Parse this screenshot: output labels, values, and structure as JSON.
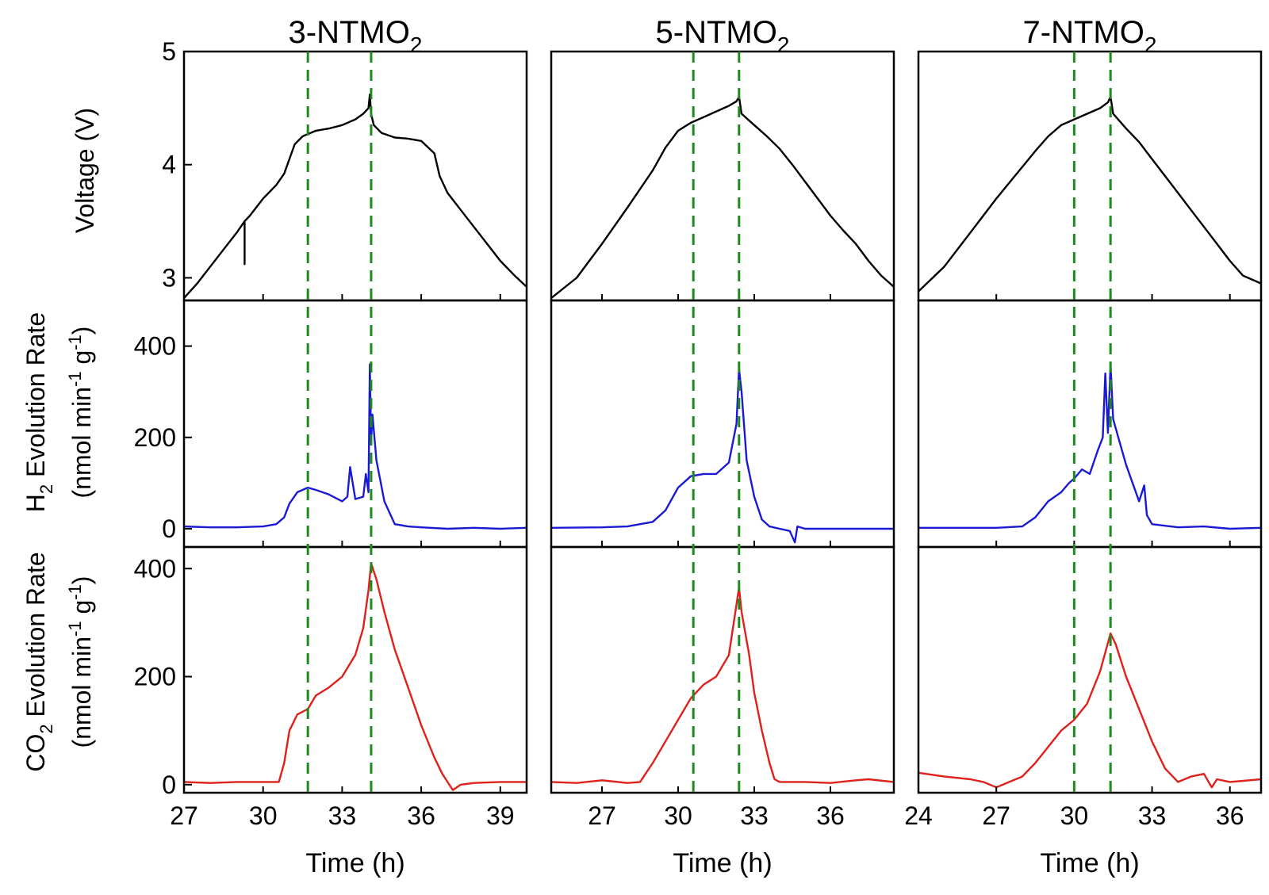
{
  "figure": {
    "x_axis_label": "Time (h)",
    "colors": {
      "voltage": "#000000",
      "h2": "#1a1ad4",
      "co2": "#e0201b",
      "markers": "#1f8a1f"
    }
  },
  "y_labels": {
    "voltage": "Voltage (V)",
    "h2": {
      "main": "H",
      "sub": "2",
      "rest": " Evolution Rate"
    },
    "co2": {
      "main": "CO",
      "sub": "2",
      "rest": " Evolution Rate"
    },
    "units": {
      "base": "(nmol min",
      "sup1": "-1",
      "mid": " g",
      "sup2": "-1",
      "end": ")"
    }
  },
  "chart_data": [
    {
      "type": "line",
      "title": {
        "main": "3-NTMO",
        "sub": "2"
      },
      "xlim": [
        27,
        40
      ],
      "x_ticks": [
        "27",
        "30",
        "33",
        "36",
        "39"
      ],
      "markers_x": [
        31.7,
        34.1
      ],
      "panels": {
        "voltage": {
          "ylim": [
            2.8,
            5.0
          ],
          "y_ticks": [
            "3",
            "4",
            "5"
          ],
          "x": [
            27,
            27.5,
            28,
            28.5,
            29,
            29.3,
            29.3,
            29.3,
            29.5,
            30,
            30.5,
            30.8,
            31,
            31.2,
            31.5,
            32,
            32.5,
            33,
            33.5,
            33.8,
            34,
            34.05,
            34.1,
            34.2,
            34.5,
            35,
            35.5,
            36,
            36.5,
            36.7,
            37,
            37.5,
            38,
            38.5,
            39,
            39.5,
            40
          ],
          "y": [
            2.82,
            2.95,
            3.1,
            3.25,
            3.4,
            3.5,
            3.12,
            3.5,
            3.55,
            3.7,
            3.82,
            3.92,
            4.05,
            4.18,
            4.25,
            4.3,
            4.32,
            4.35,
            4.4,
            4.45,
            4.5,
            4.62,
            4.45,
            4.35,
            4.28,
            4.24,
            4.23,
            4.21,
            4.1,
            3.9,
            3.75,
            3.6,
            3.45,
            3.3,
            3.15,
            3.03,
            2.92
          ]
        },
        "h2": {
          "ylim": [
            -40,
            500
          ],
          "y_ticks": [
            "0",
            "200",
            "400"
          ],
          "x": [
            27,
            28,
            29,
            30,
            30.5,
            30.8,
            31,
            31.3,
            31.7,
            32,
            32.5,
            33,
            33.2,
            33.3,
            33.5,
            33.8,
            33.9,
            34.0,
            34.05,
            34.1,
            34.15,
            34.3,
            34.6,
            35,
            35.5,
            36,
            37,
            38,
            39,
            40
          ],
          "y": [
            5,
            3,
            3,
            5,
            10,
            25,
            55,
            80,
            90,
            85,
            75,
            60,
            70,
            135,
            65,
            70,
            120,
            80,
            360,
            190,
            250,
            150,
            60,
            10,
            5,
            3,
            0,
            2,
            0,
            2
          ]
        },
        "co2": {
          "ylim": [
            -15,
            440
          ],
          "y_ticks": [
            "0",
            "200",
            "400"
          ],
          "x": [
            27,
            28,
            29,
            30,
            30.6,
            30.8,
            31,
            31.3,
            31.7,
            32,
            32.5,
            33,
            33.5,
            33.8,
            34,
            34.1,
            34.3,
            34.6,
            35,
            35.5,
            36,
            36.5,
            36.8,
            37,
            37.2,
            37.5,
            38,
            39,
            40
          ],
          "y": [
            5,
            3,
            5,
            5,
            5,
            40,
            100,
            130,
            140,
            165,
            180,
            200,
            240,
            290,
            360,
            410,
            380,
            320,
            250,
            180,
            110,
            50,
            20,
            5,
            -10,
            0,
            3,
            5,
            5
          ]
        }
      }
    },
    {
      "type": "line",
      "title": {
        "main": "5-NTMO",
        "sub": "2"
      },
      "xlim": [
        25,
        38.5
      ],
      "x_ticks": [
        "27",
        "30",
        "33",
        "36"
      ],
      "markers_x": [
        30.6,
        32.4
      ],
      "panels": {
        "voltage": {
          "ylim": [
            2.8,
            5.0
          ],
          "y_ticks": [],
          "x": [
            25,
            26,
            27,
            28,
            29,
            29.5,
            30,
            30.5,
            31,
            31.5,
            32,
            32.3,
            32.4,
            32.5,
            33,
            33.5,
            34,
            34.5,
            35,
            35.5,
            36,
            36.5,
            37,
            37.5,
            38,
            38.5
          ],
          "y": [
            2.82,
            3.0,
            3.3,
            3.62,
            3.95,
            4.15,
            4.3,
            4.37,
            4.42,
            4.47,
            4.52,
            4.56,
            4.6,
            4.45,
            4.35,
            4.25,
            4.14,
            4.0,
            3.85,
            3.7,
            3.55,
            3.42,
            3.3,
            3.15,
            3.02,
            2.92
          ]
        },
        "h2": {
          "ylim": [
            -40,
            500
          ],
          "y_ticks": [],
          "x": [
            25,
            27,
            28,
            29,
            29.5,
            30,
            30.5,
            31,
            31.5,
            32,
            32.3,
            32.4,
            32.5,
            32.7,
            33,
            33.3,
            33.6,
            34,
            34.4,
            34.6,
            34.7,
            35,
            36,
            37,
            38.5
          ],
          "y": [
            2,
            3,
            5,
            15,
            40,
            90,
            115,
            120,
            120,
            145,
            230,
            350,
            300,
            150,
            70,
            20,
            5,
            0,
            -5,
            -30,
            5,
            0,
            0,
            0,
            0
          ]
        },
        "co2": {
          "ylim": [
            -15,
            440
          ],
          "y_ticks": [],
          "x": [
            25,
            26,
            27,
            28,
            28.5,
            29,
            29.5,
            30,
            30.5,
            31,
            31.5,
            32,
            32.4,
            32.5,
            32.8,
            33,
            33.3,
            33.6,
            33.8,
            34,
            34.5,
            35,
            36,
            37,
            37.5,
            38.5
          ],
          "y": [
            5,
            3,
            8,
            3,
            5,
            40,
            80,
            120,
            160,
            185,
            200,
            240,
            365,
            320,
            240,
            170,
            100,
            40,
            10,
            5,
            5,
            5,
            3,
            8,
            10,
            5
          ]
        }
      }
    },
    {
      "type": "line",
      "title": {
        "main": "7-NTMO",
        "sub": "2"
      },
      "xlim": [
        24,
        37.2
      ],
      "x_ticks": [
        "24",
        "27",
        "30",
        "33",
        "36"
      ],
      "markers_x": [
        30.0,
        31.4
      ],
      "panels": {
        "voltage": {
          "ylim": [
            2.8,
            5.0
          ],
          "y_ticks": [],
          "x": [
            24,
            25,
            26,
            27,
            28,
            28.5,
            29,
            29.5,
            30,
            30.5,
            31,
            31.3,
            31.4,
            31.5,
            32,
            32.5,
            33,
            33.5,
            34,
            34.5,
            35,
            35.5,
            36,
            36.5,
            37.2
          ],
          "y": [
            2.88,
            3.1,
            3.4,
            3.7,
            3.98,
            4.12,
            4.25,
            4.35,
            4.4,
            4.45,
            4.5,
            4.55,
            4.6,
            4.45,
            4.32,
            4.2,
            4.05,
            3.9,
            3.75,
            3.6,
            3.45,
            3.3,
            3.15,
            3.02,
            2.95
          ]
        },
        "h2": {
          "ylim": [
            -40,
            500
          ],
          "y_ticks": [],
          "x": [
            24,
            25,
            26,
            27,
            28,
            28.5,
            29,
            29.5,
            29.8,
            30,
            30.3,
            30.6,
            30.9,
            31.1,
            31.2,
            31.3,
            31.4,
            31.5,
            31.7,
            32,
            32.5,
            32.7,
            32.8,
            33,
            34,
            35,
            36,
            37.2
          ],
          "y": [
            2,
            2,
            2,
            2,
            5,
            25,
            60,
            80,
            100,
            110,
            130,
            120,
            170,
            200,
            340,
            210,
            360,
            240,
            200,
            140,
            60,
            95,
            30,
            10,
            3,
            5,
            0,
            2
          ]
        },
        "co2": {
          "ylim": [
            -15,
            440
          ],
          "y_ticks": [],
          "x": [
            24,
            25,
            26,
            26.5,
            27,
            27.5,
            28,
            28.5,
            29,
            29.5,
            30,
            30.5,
            31,
            31.4,
            31.6,
            32,
            32.5,
            33,
            33.5,
            34,
            34.5,
            35,
            35.3,
            35.5,
            36,
            37.2
          ],
          "y": [
            22,
            15,
            10,
            5,
            -5,
            5,
            15,
            40,
            70,
            100,
            120,
            150,
            210,
            280,
            260,
            200,
            140,
            80,
            30,
            5,
            15,
            20,
            -5,
            10,
            5,
            10
          ]
        }
      }
    }
  ]
}
